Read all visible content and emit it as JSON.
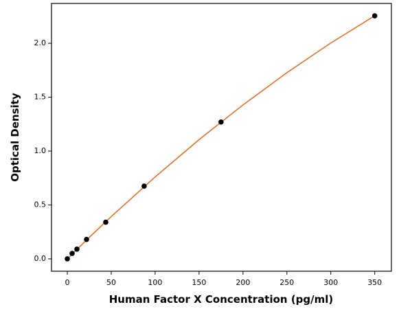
{
  "chart_data": {
    "type": "scatter",
    "xlabel": "Human Factor X Concentration (pg/ml)",
    "ylabel": "Optical Density",
    "xlim": [
      -18,
      369
    ],
    "ylim": [
      -0.115,
      2.37
    ],
    "xticks": [
      0,
      50,
      100,
      150,
      200,
      250,
      300,
      350
    ],
    "yticks": [
      {
        "value": 0,
        "label": "0.0"
      },
      {
        "value": 0.5,
        "label": "0.5"
      },
      {
        "value": 1,
        "label": "1.0"
      },
      {
        "value": 1.5,
        "label": "1.5"
      },
      {
        "value": 2,
        "label": "2.0"
      }
    ],
    "grid": false,
    "series": [
      {
        "type": "line",
        "color": "#e8681a",
        "x": [
          0,
          25,
          50,
          100,
          150,
          200,
          250,
          300,
          350
        ],
        "values": [
          0,
          0.199,
          0.392,
          0.76,
          1.106,
          1.428,
          1.727,
          2.003,
          2.255
        ]
      },
      {
        "type": "scatter",
        "color": "#000000",
        "x": [
          0,
          5.47,
          10.94,
          21.88,
          43.75,
          87.5,
          175,
          350
        ],
        "values": [
          0,
          0.05,
          0.09,
          0.18,
          0.34,
          0.675,
          1.27,
          2.255
        ]
      }
    ]
  }
}
